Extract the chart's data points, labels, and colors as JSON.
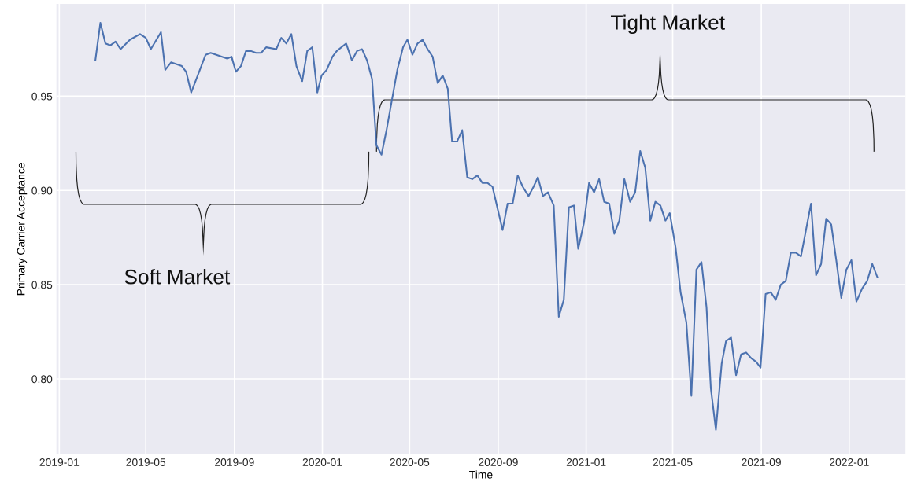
{
  "chart_data": {
    "type": "line",
    "xlabel": "Time",
    "ylabel": "Primary Carrier Acceptance",
    "x": [
      "2019-02-20",
      "2019-02-27",
      "2019-03-06",
      "2019-03-13",
      "2019-03-20",
      "2019-03-27",
      "2019-04-09",
      "2019-04-23",
      "2019-05-01",
      "2019-05-08",
      "2019-05-22",
      "2019-05-28",
      "2019-06-05",
      "2019-06-20",
      "2019-06-26",
      "2019-07-03",
      "2019-07-23",
      "2019-07-30",
      "2019-08-22",
      "2019-08-28",
      "2019-09-03",
      "2019-09-10",
      "2019-09-17",
      "2019-09-24",
      "2019-10-01",
      "2019-10-08",
      "2019-10-15",
      "2019-10-29",
      "2019-11-05",
      "2019-11-12",
      "2019-11-19",
      "2019-11-26",
      "2019-12-04",
      "2019-12-11",
      "2019-12-18",
      "2019-12-25",
      "2019-12-31",
      "2020-01-07",
      "2020-01-15",
      "2020-01-21",
      "2020-02-03",
      "2020-02-11",
      "2020-02-18",
      "2020-02-25",
      "2020-03-03",
      "2020-03-10",
      "2020-03-16",
      "2020-03-23",
      "2020-03-30",
      "2020-04-14",
      "2020-04-22",
      "2020-04-28",
      "2020-05-05",
      "2020-05-12",
      "2020-05-19",
      "2020-05-26",
      "2020-06-02",
      "2020-06-09",
      "2020-06-16",
      "2020-06-23",
      "2020-06-29",
      "2020-07-06",
      "2020-07-13",
      "2020-07-20",
      "2020-07-27",
      "2020-08-03",
      "2020-08-10",
      "2020-08-17",
      "2020-08-24",
      "2020-09-07",
      "2020-09-14",
      "2020-09-21",
      "2020-09-28",
      "2020-10-05",
      "2020-10-13",
      "2020-10-20",
      "2020-10-26",
      "2020-11-02",
      "2020-11-09",
      "2020-11-17",
      "2020-11-24",
      "2020-12-01",
      "2020-12-08",
      "2020-12-15",
      "2020-12-21",
      "2020-12-29",
      "2021-01-05",
      "2021-01-12",
      "2021-01-19",
      "2021-01-26",
      "2021-02-02",
      "2021-02-09",
      "2021-02-16",
      "2021-02-23",
      "2021-03-03",
      "2021-03-10",
      "2021-03-17",
      "2021-03-24",
      "2021-03-31",
      "2021-04-07",
      "2021-04-14",
      "2021-04-21",
      "2021-04-27",
      "2021-05-05",
      "2021-05-12",
      "2021-05-20",
      "2021-05-27",
      "2021-06-03",
      "2021-06-10",
      "2021-06-17",
      "2021-06-23",
      "2021-06-30",
      "2021-07-08",
      "2021-07-14",
      "2021-07-21",
      "2021-07-28",
      "2021-08-04",
      "2021-08-11",
      "2021-08-18",
      "2021-08-25",
      "2021-08-31",
      "2021-09-07",
      "2021-09-14",
      "2021-09-21",
      "2021-09-28",
      "2021-10-05",
      "2021-10-12",
      "2021-10-19",
      "2021-10-26",
      "2021-11-02",
      "2021-11-09",
      "2021-11-16",
      "2021-11-23",
      "2021-11-30",
      "2021-12-07",
      "2021-12-14",
      "2021-12-21",
      "2021-12-28",
      "2022-01-04",
      "2022-01-11",
      "2022-01-19",
      "2022-01-26",
      "2022-02-02",
      "2022-02-09"
    ],
    "series": [
      {
        "color": "#4c72b0",
        "values": [
          0.969,
          0.989,
          0.978,
          0.977,
          0.979,
          0.975,
          0.98,
          0.983,
          0.981,
          0.975,
          0.984,
          0.964,
          0.968,
          0.966,
          0.963,
          0.952,
          0.972,
          0.973,
          0.97,
          0.971,
          0.963,
          0.966,
          0.974,
          0.974,
          0.973,
          0.973,
          0.976,
          0.975,
          0.981,
          0.978,
          0.983,
          0.966,
          0.958,
          0.974,
          0.976,
          0.952,
          0.961,
          0.964,
          0.971,
          0.974,
          0.978,
          0.969,
          0.974,
          0.975,
          0.969,
          0.959,
          0.924,
          0.919,
          0.932,
          0.964,
          0.976,
          0.98,
          0.972,
          0.978,
          0.98,
          0.975,
          0.971,
          0.957,
          0.961,
          0.954,
          0.926,
          0.926,
          0.932,
          0.907,
          0.906,
          0.908,
          0.904,
          0.904,
          0.902,
          0.879,
          0.893,
          0.893,
          0.908,
          0.902,
          0.897,
          0.902,
          0.907,
          0.897,
          0.899,
          0.892,
          0.833,
          0.842,
          0.891,
          0.892,
          0.869,
          0.883,
          0.904,
          0.899,
          0.906,
          0.894,
          0.893,
          0.877,
          0.884,
          0.906,
          0.894,
          0.899,
          0.921,
          0.912,
          0.884,
          0.894,
          0.892,
          0.884,
          0.888,
          0.87,
          0.846,
          0.83,
          0.791,
          0.858,
          0.862,
          0.838,
          0.795,
          0.773,
          0.808,
          0.82,
          0.822,
          0.802,
          0.813,
          0.814,
          0.811,
          0.809,
          0.806,
          0.845,
          0.846,
          0.842,
          0.85,
          0.852,
          0.867,
          0.867,
          0.865,
          0.879,
          0.893,
          0.855,
          0.861,
          0.885,
          0.882,
          0.863,
          0.843,
          0.858,
          0.863,
          0.841,
          0.848,
          0.852,
          0.861,
          0.854
        ]
      }
    ],
    "xlim": [
      "2018-12-28",
      "2022-03-20"
    ],
    "ylim": [
      0.76,
      0.999
    ],
    "xticks": [
      {
        "value": "2019-01",
        "label": "2019-01"
      },
      {
        "value": "2019-05",
        "label": "2019-05"
      },
      {
        "value": "2019-09",
        "label": "2019-09"
      },
      {
        "value": "2020-01",
        "label": "2020-01"
      },
      {
        "value": "2020-05",
        "label": "2020-05"
      },
      {
        "value": "2020-09",
        "label": "2020-09"
      },
      {
        "value": "2021-01",
        "label": "2021-01"
      },
      {
        "value": "2021-05",
        "label": "2021-05"
      },
      {
        "value": "2021-09",
        "label": "2021-09"
      },
      {
        "value": "2022-01",
        "label": "2022-01"
      }
    ],
    "yticks": [
      {
        "value": 0.8,
        "label": "0.80"
      },
      {
        "value": 0.85,
        "label": "0.85"
      },
      {
        "value": 0.9,
        "label": "0.90"
      },
      {
        "value": 0.95,
        "label": "0.95"
      }
    ],
    "grid": true,
    "line_style": "solid",
    "annotations": [
      "Soft Market",
      "Tight Market"
    ]
  }
}
